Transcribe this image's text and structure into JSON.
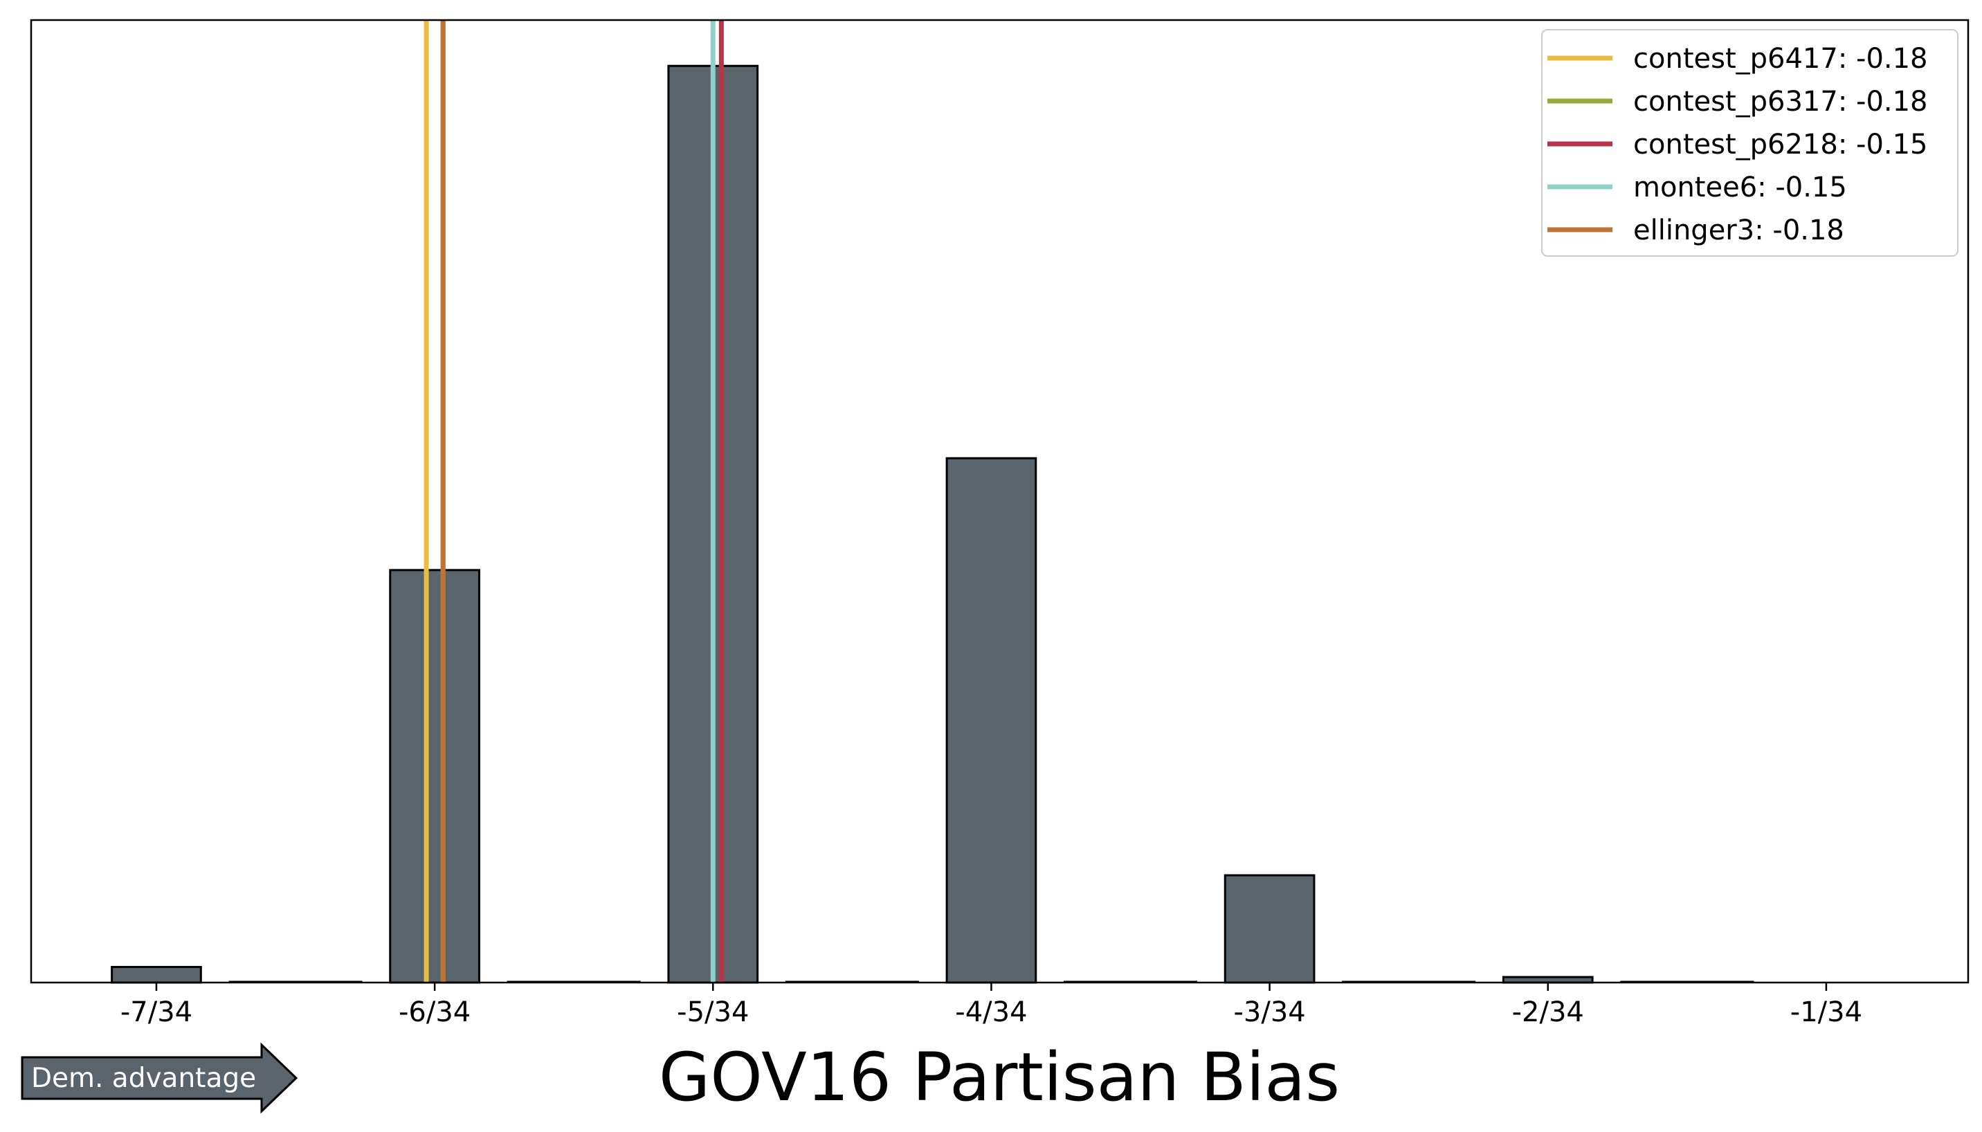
{
  "chart_data": {
    "type": "bar",
    "title": "",
    "xlabel": "GOV16 Partisan Bias",
    "ylabel": "",
    "x_ticks": [
      {
        "value": -7,
        "label": "-7/34"
      },
      {
        "value": -6,
        "label": "-6/34"
      },
      {
        "value": -5,
        "label": "-5/34"
      },
      {
        "value": -4,
        "label": "-4/34"
      },
      {
        "value": -3,
        "label": "-3/34"
      },
      {
        "value": -2,
        "label": "-2/34"
      },
      {
        "value": -1,
        "label": "-1/34"
      }
    ],
    "bars": [
      {
        "x": -7,
        "value": 1.7
      },
      {
        "x": -6,
        "value": 45
      },
      {
        "x": -5,
        "value": 100
      },
      {
        "x": -4,
        "value": 57.2
      },
      {
        "x": -3,
        "value": 11.7
      },
      {
        "x": -2,
        "value": 0.6
      },
      {
        "x": -1,
        "value": 0
      }
    ],
    "xlim": [
      -7.45,
      -0.49
    ],
    "ylim": [
      0,
      105
    ],
    "bar_color": "#5a646d",
    "grid": false,
    "legend_position": "top-right",
    "reference_lines": [
      {
        "name": "contest_p6417: -0.18",
        "x": -6.03,
        "color": "#e8bd42"
      },
      {
        "name": "contest_p6317: -0.18",
        "x": -5.97,
        "color": "#96aa3c"
      },
      {
        "name": "contest_p6218: -0.15",
        "x": -4.97,
        "color": "#b53447"
      },
      {
        "name": "montee6: -0.15",
        "x": -5.0,
        "color": "#8fd1c8"
      },
      {
        "name": "ellinger3: -0.18",
        "x": -5.97,
        "color": "#bf7334"
      }
    ]
  },
  "annotation": {
    "arrow_label": "Dem. advantage",
    "arrow_color": "#5a646d"
  }
}
